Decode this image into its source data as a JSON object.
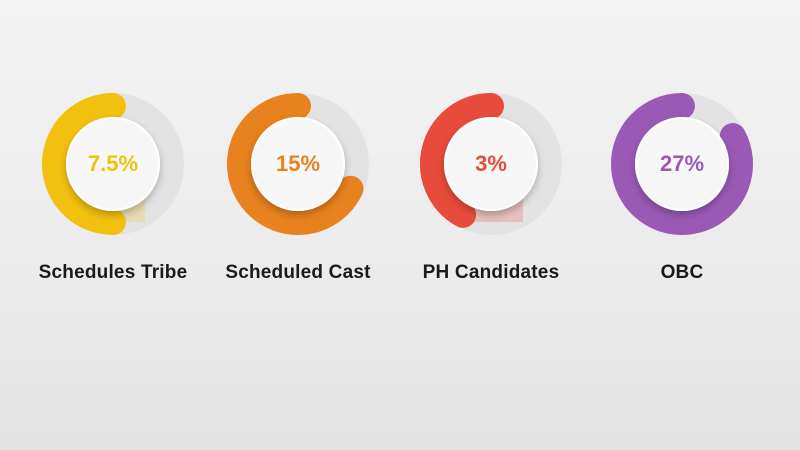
{
  "chart_data": {
    "type": "pie",
    "categories": [
      "Schedules Tribe",
      "Scheduled Cast",
      "PH Candidates",
      "OBC"
    ],
    "values_text": [
      "7.5%",
      "15%",
      "3%",
      "27%"
    ],
    "colors": [
      "#f2c10f",
      "#e8821e",
      "#e84b3c",
      "#9b59b6"
    ],
    "arc_fill_fraction": [
      0.5,
      0.68,
      0.42,
      0.83
    ]
  }
}
